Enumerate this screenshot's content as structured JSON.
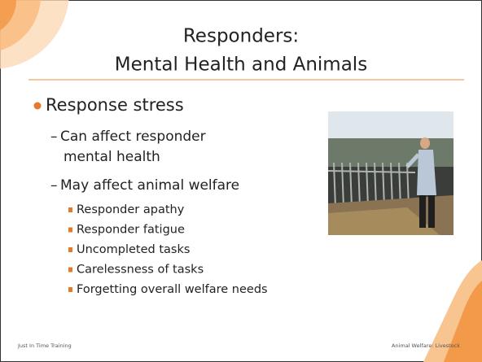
{
  "title": {
    "line1": "Responders:",
    "line2": "Mental Health and Animals"
  },
  "body": {
    "bullet": "Response stress",
    "subitems": [
      {
        "lines": [
          "Can affect responder",
          "mental health"
        ]
      },
      {
        "lines": [
          "May affect animal welfare"
        ],
        "items": [
          "Responder apathy",
          "Responder fatigue",
          "Uncompleted tasks",
          "Carelessness of tasks",
          "Forgetting overall welfare needs"
        ]
      }
    ]
  },
  "footer": {
    "left": "Just In Time Training",
    "right": "Animal Welfare: Livestock"
  }
}
